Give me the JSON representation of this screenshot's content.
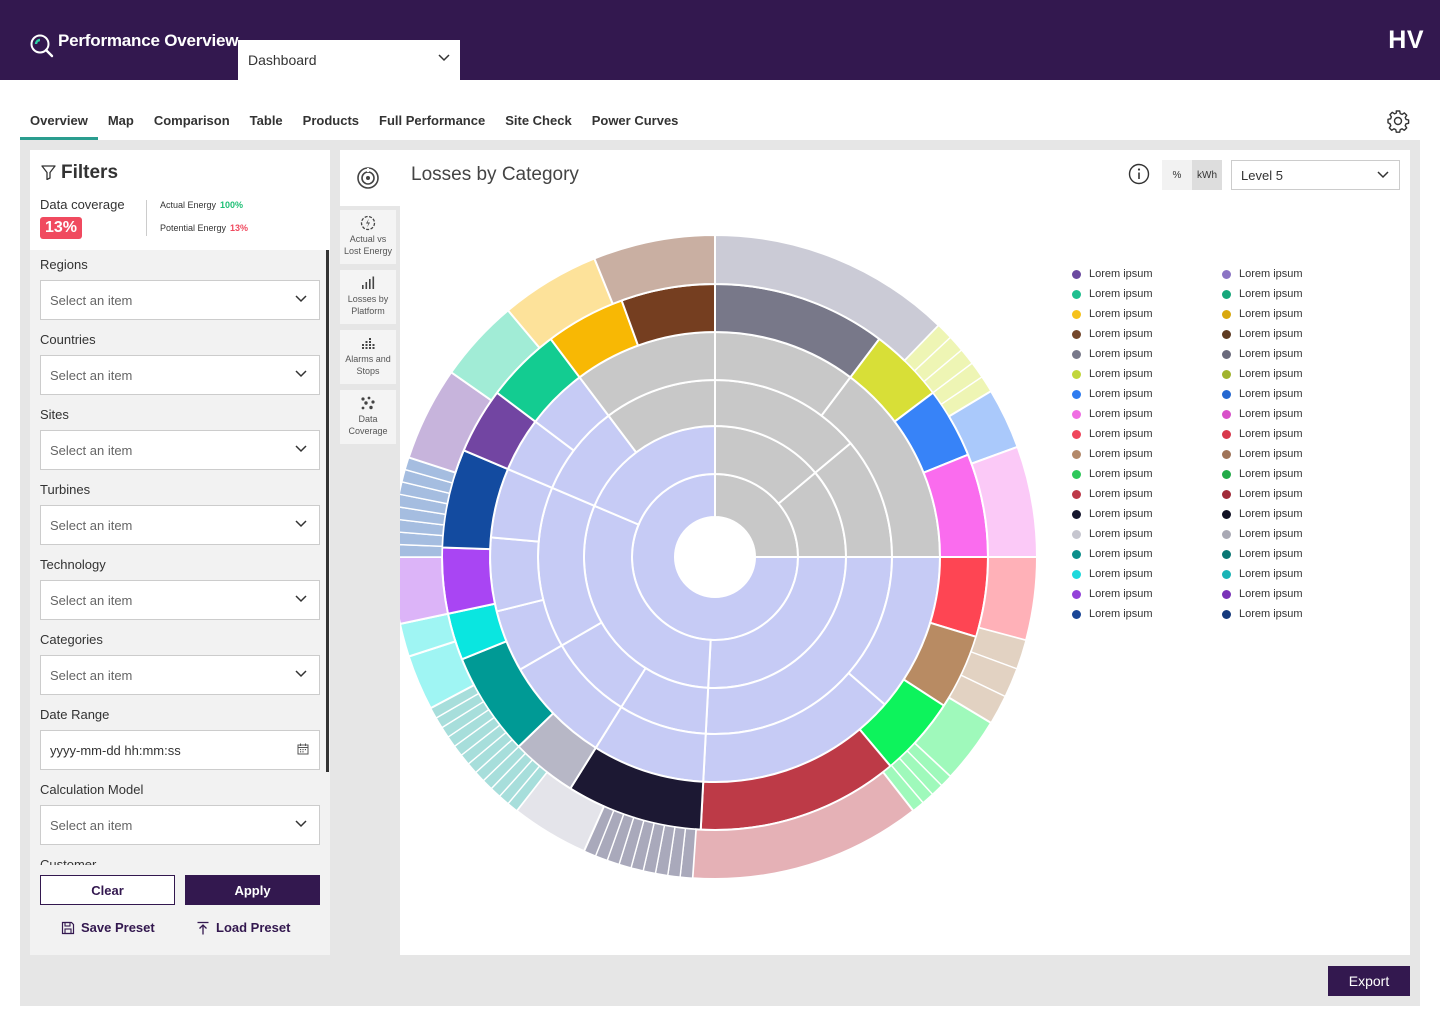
{
  "header": {
    "app_title": "Performance Overview",
    "dashboard_select": "Dashboard",
    "brand": "HV"
  },
  "tabs": [
    "Overview",
    "Map",
    "Comparison",
    "Table",
    "Products",
    "Full Performance",
    "Site Check",
    "Power Curves"
  ],
  "active_tab": "Overview",
  "filters": {
    "title": "Filters",
    "data_coverage_label": "Data coverage",
    "data_coverage_value": "13%",
    "actual_energy_label": "Actual Energy",
    "actual_energy_value": "100%",
    "potential_energy_label": "Potential Energy",
    "potential_energy_value": "13%",
    "fields": [
      {
        "label": "Regions",
        "value": "Select an item"
      },
      {
        "label": "Countries",
        "value": "Select an item"
      },
      {
        "label": "Sites",
        "value": "Select an item"
      },
      {
        "label": "Turbines",
        "value": "Select an item"
      },
      {
        "label": "Technology",
        "value": "Select an item"
      },
      {
        "label": "Categories",
        "value": "Select an item"
      },
      {
        "label": "Date Range",
        "value": "yyyy-mm-dd hh:mm:ss"
      },
      {
        "label": "Calculation Model",
        "value": "Select an item"
      },
      {
        "label": "Customer",
        "value": ""
      }
    ],
    "clear_label": "Clear",
    "apply_label": "Apply",
    "save_preset_label": "Save Preset",
    "load_preset_label": "Load Preset"
  },
  "side_nav": [
    {
      "label": "Actual vs Lost Energy",
      "icon": "lightning-gear-icon"
    },
    {
      "label": "Losses by Platform",
      "icon": "bar-chart-icon"
    },
    {
      "label": "Alarms and Stops",
      "icon": "dot-bars-icon"
    },
    {
      "label": "Data Coverage",
      "icon": "scatter-icon"
    }
  ],
  "panel": {
    "title": "Losses by Category",
    "unit_percent": "%",
    "unit_kwh": "kWh",
    "selected_unit": "kWh",
    "level_select": "Level 5",
    "export_label": "Export"
  },
  "colors": {
    "brand": "#33184f",
    "accent": "#2a9d8f",
    "danger": "#f04a5f",
    "success": "#1fbf75"
  },
  "chart_data": {
    "type": "sunburst",
    "title": "Losses by Category",
    "rings": [
      {
        "level": 1,
        "segments": [
          {
            "start": 0,
            "end": 90,
            "color": "#c8c8c8"
          },
          {
            "start": 90,
            "end": 360,
            "color": "#c6cbf5"
          }
        ]
      },
      {
        "level": 2,
        "segments": [
          {
            "start": 0,
            "end": 50,
            "color": "#c8c8c8"
          },
          {
            "start": 50,
            "end": 90,
            "color": "#c8c8c8"
          },
          {
            "start": 90,
            "end": 183,
            "color": "#c6cbf5"
          },
          {
            "start": 183,
            "end": 293,
            "color": "#c6cbf5"
          },
          {
            "start": 293,
            "end": 360,
            "color": "#c6cbf5"
          }
        ]
      },
      {
        "level": 3,
        "segments": [
          {
            "start": 0,
            "end": 50,
            "color": "#c8c8c8"
          },
          {
            "start": 50,
            "end": 90,
            "color": "#c8c8c8"
          },
          {
            "start": 90,
            "end": 183,
            "color": "#c6cbf5"
          },
          {
            "start": 183,
            "end": 212,
            "color": "#c6cbf5"
          },
          {
            "start": 212,
            "end": 240,
            "color": "#c6cbf5"
          },
          {
            "start": 240,
            "end": 293,
            "color": "#c6cbf5"
          },
          {
            "start": 293,
            "end": 323,
            "color": "#c6cbf5"
          },
          {
            "start": 323,
            "end": 360,
            "color": "#c8c8c8"
          }
        ]
      },
      {
        "level": 4,
        "segments": [
          {
            "start": 0,
            "end": 37,
            "color": "#c8c8c8"
          },
          {
            "start": 37,
            "end": 90,
            "color": "#c8c8c8"
          },
          {
            "start": 90,
            "end": 131,
            "color": "#c6cbf5"
          },
          {
            "start": 131,
            "end": 183,
            "color": "#c6cbf5"
          },
          {
            "start": 183,
            "end": 212,
            "color": "#c6cbf5"
          },
          {
            "start": 212,
            "end": 240,
            "color": "#c6cbf5"
          },
          {
            "start": 240,
            "end": 256,
            "color": "#c6cbf5"
          },
          {
            "start": 256,
            "end": 275,
            "color": "#c6cbf5"
          },
          {
            "start": 275,
            "end": 293,
            "color": "#c6cbf5"
          },
          {
            "start": 293,
            "end": 307,
            "color": "#c6cbf5"
          },
          {
            "start": 307,
            "end": 323,
            "color": "#c6cbf5"
          },
          {
            "start": 323,
            "end": 360,
            "color": "#c8c8c8"
          }
        ]
      },
      {
        "level": 5,
        "segments": [
          {
            "start": 0,
            "end": 37,
            "color": "#787889"
          },
          {
            "start": 37,
            "end": 53,
            "color": "#d8df37"
          },
          {
            "start": 53,
            "end": 68,
            "color": "#3783f8"
          },
          {
            "start": 68,
            "end": 90,
            "color": "#fa6cee"
          },
          {
            "start": 90,
            "end": 107,
            "color": "#fe4553"
          },
          {
            "start": 107,
            "end": 123,
            "color": "#b88b63"
          },
          {
            "start": 123,
            "end": 140,
            "color": "#0df35c"
          },
          {
            "start": 140,
            "end": 183,
            "color": "#bd3a47"
          },
          {
            "start": 183,
            "end": 212,
            "color": "#1c1833"
          },
          {
            "start": 212,
            "end": 226,
            "color": "#b7b7c6"
          },
          {
            "start": 226,
            "end": 248,
            "color": "#009a95"
          },
          {
            "start": 248,
            "end": 258,
            "color": "#0ae6e0"
          },
          {
            "start": 258,
            "end": 272,
            "color": "#a945f3"
          },
          {
            "start": 272,
            "end": 293,
            "color": "#134ba0"
          },
          {
            "start": 293,
            "end": 307,
            "color": "#7245a2"
          },
          {
            "start": 307,
            "end": 323,
            "color": "#13cc91"
          },
          {
            "start": 323,
            "end": 340,
            "color": "#f8b804"
          },
          {
            "start": 340,
            "end": 360,
            "color": "#753e20"
          }
        ]
      },
      {
        "level": 6,
        "segments": [
          {
            "start": 0,
            "end": 44,
            "color": "#cbcbd6"
          },
          {
            "start": 44,
            "end": 59,
            "color": "#eef5b4",
            "sub": 5
          },
          {
            "start": 59,
            "end": 70,
            "color": "#aac9fb"
          },
          {
            "start": 70,
            "end": 90,
            "color": "#fbc9f7"
          },
          {
            "start": 90,
            "end": 105,
            "color": "#ffb1b8"
          },
          {
            "start": 105,
            "end": 121,
            "color": "#e2d2c2",
            "sub": 3
          },
          {
            "start": 121,
            "end": 133,
            "color": "#9ff9bb"
          },
          {
            "start": 133,
            "end": 142,
            "color": "#9ff9bb",
            "sub": 4
          },
          {
            "start": 142,
            "end": 184,
            "color": "#e5b1b6"
          },
          {
            "start": 184,
            "end": 204,
            "color": "#a9a9bb",
            "sub": 9
          },
          {
            "start": 204,
            "end": 218,
            "color": "#e4e4ea"
          },
          {
            "start": 218,
            "end": 242,
            "color": "#a7dedb",
            "sub": 12
          },
          {
            "start": 242,
            "end": 252,
            "color": "#9ff5f3"
          },
          {
            "start": 252,
            "end": 258,
            "color": "#9ff5f3"
          },
          {
            "start": 258,
            "end": 270,
            "color": "#dcb4f8"
          },
          {
            "start": 270,
            "end": 288,
            "color": "#a5bde0",
            "sub": 8
          },
          {
            "start": 288,
            "end": 305,
            "color": "#c7b4dc"
          },
          {
            "start": 305,
            "end": 320,
            "color": "#a1ecd6"
          },
          {
            "start": 320,
            "end": 338,
            "color": "#fde29a"
          },
          {
            "start": 338,
            "end": 360,
            "color": "#c9afa2"
          }
        ]
      }
    ],
    "legend": [
      {
        "label": "Lorem ipsum",
        "color": "#6b4aa0"
      },
      {
        "label": "Lorem ipsum",
        "color": "#1fbf8f"
      },
      {
        "label": "Lorem ipsum",
        "color": "#f6c21c"
      },
      {
        "label": "Lorem ipsum",
        "color": "#74472b"
      },
      {
        "label": "Lorem ipsum",
        "color": "#78798a"
      },
      {
        "label": "Lorem ipsum",
        "color": "#c2d63b"
      },
      {
        "label": "Lorem ipsum",
        "color": "#2f7cf0"
      },
      {
        "label": "Lorem ipsum",
        "color": "#f06ee3"
      },
      {
        "label": "Lorem ipsum",
        "color": "#f0465c"
      },
      {
        "label": "Lorem ipsum",
        "color": "#b3896a"
      },
      {
        "label": "Lorem ipsum",
        "color": "#2fc85b"
      },
      {
        "label": "Lorem ipsum",
        "color": "#bd3a49"
      },
      {
        "label": "Lorem ipsum",
        "color": "#17182f"
      },
      {
        "label": "Lorem ipsum",
        "color": "#c6c6cf"
      },
      {
        "label": "Lorem ipsum",
        "color": "#0c8f8b"
      },
      {
        "label": "Lorem ipsum",
        "color": "#1ed9dc"
      },
      {
        "label": "Lorem ipsum",
        "color": "#9342d9"
      },
      {
        "label": "Lorem ipsum",
        "color": "#1a4696"
      },
      {
        "label": "Lorem ipsum",
        "color": "#8b74c4"
      },
      {
        "label": "Lorem ipsum",
        "color": "#17a77b"
      },
      {
        "label": "Lorem ipsum",
        "color": "#d9a80e"
      },
      {
        "label": "Lorem ipsum",
        "color": "#5e3b22"
      },
      {
        "label": "Lorem ipsum",
        "color": "#6a6a7c"
      },
      {
        "label": "Lorem ipsum",
        "color": "#a1b32d"
      },
      {
        "label": "Lorem ipsum",
        "color": "#2568d1"
      },
      {
        "label": "Lorem ipsum",
        "color": "#d850c9"
      },
      {
        "label": "Lorem ipsum",
        "color": "#d8384c"
      },
      {
        "label": "Lorem ipsum",
        "color": "#9f7459"
      },
      {
        "label": "Lorem ipsum",
        "color": "#23ab49"
      },
      {
        "label": "Lorem ipsum",
        "color": "#a12b39"
      },
      {
        "label": "Lorem ipsum",
        "color": "#111224"
      },
      {
        "label": "Lorem ipsum",
        "color": "#a9a9b4"
      },
      {
        "label": "Lorem ipsum",
        "color": "#0a7774"
      },
      {
        "label": "Lorem ipsum",
        "color": "#1ab4b6"
      },
      {
        "label": "Lorem ipsum",
        "color": "#7a33b8"
      },
      {
        "label": "Lorem ipsum",
        "color": "#163a7c"
      }
    ]
  }
}
